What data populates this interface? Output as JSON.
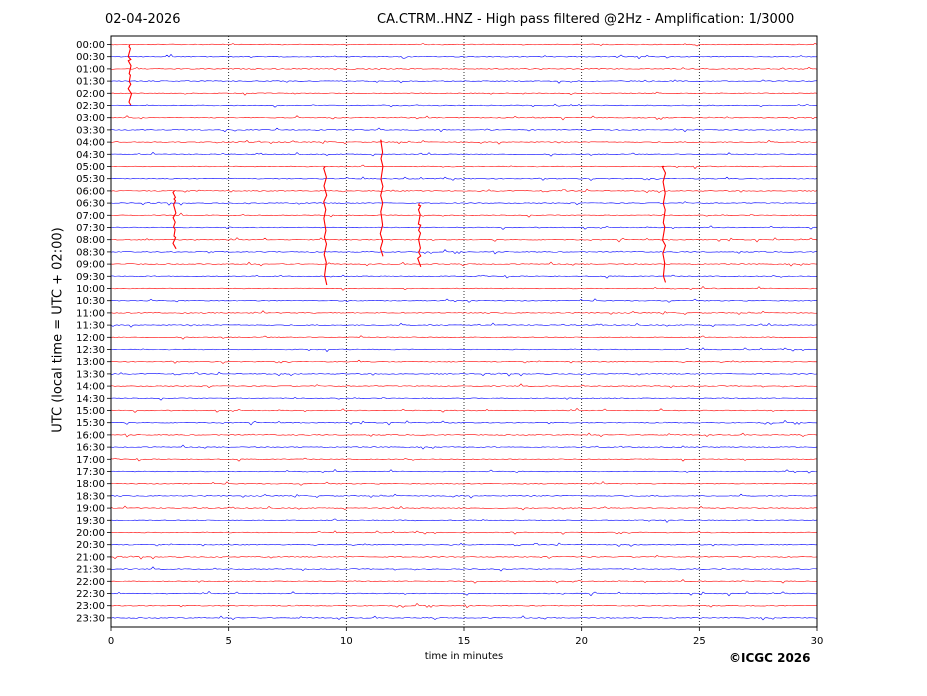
{
  "header": {
    "date": "02-04-2026",
    "title": "CA.CTRM..HNZ - High pass filtered @2Hz - Amplification: 1/3000"
  },
  "footer": {
    "credit": "©ICGC 2026"
  },
  "chart_data": {
    "type": "line",
    "title": "CA.CTRM..HNZ - High pass filtered @2Hz - Amplification: 1/3000",
    "xlabel": "time in minutes",
    "ylabel": "UTC (local time = UTC + 02:00)",
    "xlim": [
      0,
      30
    ],
    "x_ticks": [
      "0",
      "5",
      "10",
      "15",
      "20",
      "25",
      "30"
    ],
    "rows": [
      "00:00",
      "00:30",
      "01:00",
      "01:30",
      "02:00",
      "02:30",
      "03:00",
      "03:30",
      "04:00",
      "04:30",
      "05:00",
      "05:30",
      "06:00",
      "06:30",
      "07:00",
      "07:30",
      "08:00",
      "08:30",
      "09:00",
      "09:30",
      "10:00",
      "10:30",
      "11:00",
      "11:30",
      "12:00",
      "12:30",
      "13:00",
      "13:30",
      "14:00",
      "14:30",
      "15:00",
      "15:30",
      "16:00",
      "16:30",
      "17:00",
      "17:30",
      "18:00",
      "18:30",
      "19:00",
      "19:30",
      "20:00",
      "20:30",
      "21:00",
      "21:30",
      "22:00",
      "22:30",
      "23:00",
      "23:30"
    ],
    "trace_colors": [
      "#ff0000",
      "#0000ff"
    ],
    "vertical_grid": "dotted",
    "events": [
      {
        "row": "00:00",
        "minute": 0.8,
        "amplitude_rows": 5.0
      },
      {
        "row": "04:00",
        "minute": 11.5,
        "amplitude_rows": 9.5
      },
      {
        "row": "05:00",
        "minute": 9.1,
        "amplitude_rows": 9.5
      },
      {
        "row": "05:00",
        "minute": 23.5,
        "amplitude_rows": 9.5
      },
      {
        "row": "06:00",
        "minute": 2.7,
        "amplitude_rows": 4.5
      },
      {
        "row": "06:30",
        "minute": 13.1,
        "amplitude_rows": 5.0
      }
    ]
  }
}
